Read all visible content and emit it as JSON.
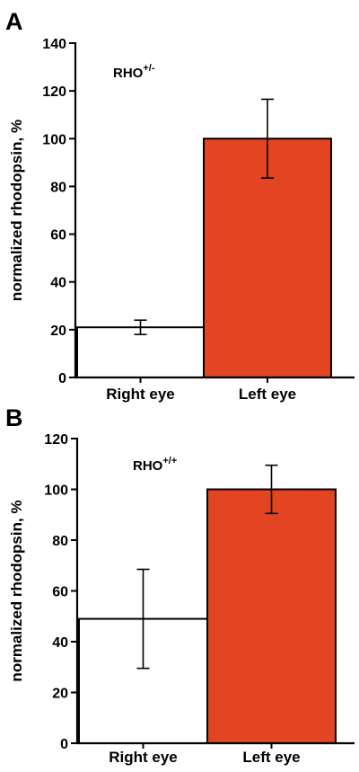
{
  "chart_data": [
    {
      "type": "bar",
      "panel": "A",
      "annotation": {
        "base": "RHO",
        "sup": "+/-"
      },
      "categories": [
        "Right eye",
        "Left eye"
      ],
      "values": [
        21,
        100
      ],
      "errors": [
        3,
        16.5
      ],
      "ylabel": "normalized rhodopsin, %",
      "ylim": [
        0,
        140
      ],
      "yticks": [
        0,
        20,
        40,
        60,
        80,
        100,
        120,
        140
      ],
      "bar_colors": [
        "#ffffff",
        "#e34421"
      ],
      "grid": false
    },
    {
      "type": "bar",
      "panel": "B",
      "annotation": {
        "base": "RHO",
        "sup": "+/+"
      },
      "categories": [
        "Right eye",
        "Left eye"
      ],
      "values": [
        49,
        100
      ],
      "errors": [
        19.5,
        9.5
      ],
      "ylabel": "normalized rhodopsin, %",
      "ylim": [
        0,
        120
      ],
      "yticks": [
        0,
        20,
        40,
        60,
        80,
        100,
        120
      ],
      "bar_colors": [
        "#ffffff",
        "#e34421"
      ],
      "grid": false
    }
  ]
}
